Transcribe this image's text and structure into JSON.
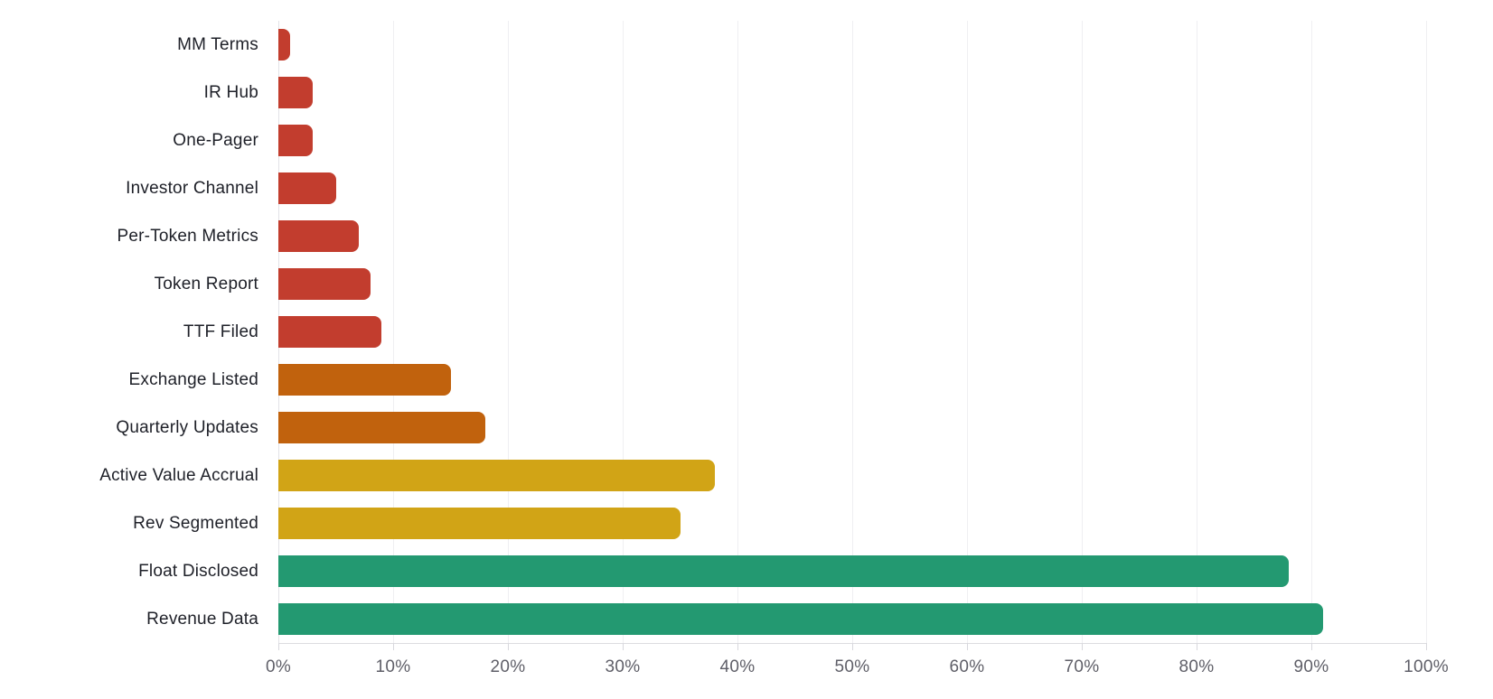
{
  "chart_data": {
    "type": "bar",
    "orientation": "horizontal",
    "title": "",
    "xlabel": "",
    "ylabel": "",
    "categories": [
      "MM Terms",
      "IR Hub",
      "One-Pager",
      "Investor Channel",
      "Per-Token Metrics",
      "Token Report",
      "TTF Filed",
      "Exchange Listed",
      "Quarterly Updates",
      "Active Value Accrual",
      "Rev Segmented",
      "Float Disclosed",
      "Revenue Data"
    ],
    "values": [
      1,
      3,
      3,
      5,
      7,
      8,
      9,
      15,
      18,
      38,
      35,
      88,
      91
    ],
    "value_unit": "percent",
    "bar_colors": [
      "#c23d2e",
      "#c23d2e",
      "#c23d2e",
      "#c23d2e",
      "#c23d2e",
      "#c23d2e",
      "#c23d2e",
      "#c1620d",
      "#c1620d",
      "#d1a416",
      "#d1a416",
      "#239971",
      "#239971"
    ],
    "xlim": [
      0,
      100
    ],
    "x_tick_step": 10,
    "x_tick_labels": [
      "0%",
      "10%",
      "20%",
      "30%",
      "40%",
      "50%",
      "60%",
      "70%",
      "80%",
      "90%",
      "100%"
    ],
    "grid": "vertical",
    "legend": "none"
  },
  "colors": {
    "bar_red": "#c23d2e",
    "bar_orange": "#c1620d",
    "bar_yellow": "#d1a416",
    "bar_green": "#239971",
    "gridline": "#efeff2",
    "zero_line": "#e3e3e7",
    "axis_line": "#dcdce0",
    "tick_mark": "#d8d8dd",
    "tick_text": "#5f5f68",
    "label_text": "#1e2028",
    "background": "#ffffff"
  }
}
